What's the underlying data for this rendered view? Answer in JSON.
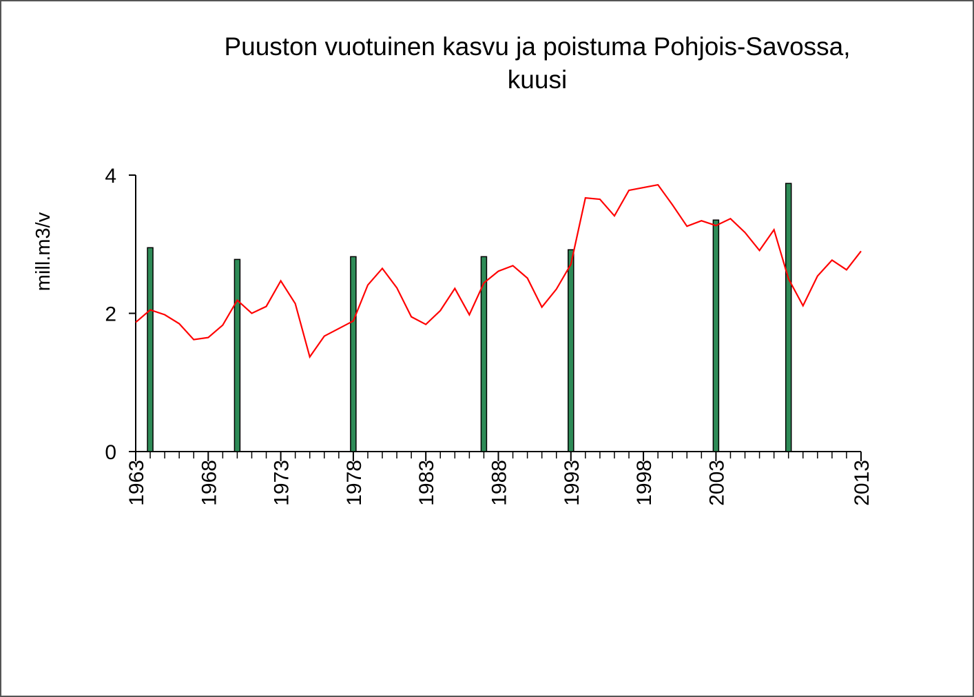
{
  "chart_data": {
    "type": "combo",
    "title": [
      "Puuston vuotuinen kasvu ja poistuma Pohjois-Savossa,",
      "kuusi"
    ],
    "y_label": "mill.m3/v",
    "x": [
      1963,
      1964,
      1965,
      1966,
      1967,
      1968,
      1969,
      1970,
      1971,
      1972,
      1973,
      1974,
      1975,
      1976,
      1977,
      1978,
      1979,
      1980,
      1981,
      1982,
      1983,
      1984,
      1985,
      1986,
      1987,
      1988,
      1989,
      1990,
      1991,
      1992,
      1993,
      1994,
      1995,
      1996,
      1997,
      1998,
      1999,
      2000,
      2001,
      2002,
      2003,
      2004,
      2005,
      2006,
      2007,
      2008,
      2009,
      2010,
      2011,
      2012,
      2013
    ],
    "series": [
      {
        "type": "bar",
        "color": "#2e8b57",
        "values": [
          null,
          2.95,
          null,
          null,
          null,
          null,
          null,
          2.78,
          null,
          null,
          null,
          null,
          null,
          null,
          null,
          2.82,
          null,
          null,
          null,
          null,
          null,
          null,
          null,
          null,
          2.82,
          null,
          null,
          null,
          null,
          null,
          2.92,
          null,
          null,
          null,
          null,
          null,
          null,
          null,
          null,
          null,
          3.35,
          null,
          null,
          null,
          null,
          3.88,
          null,
          null,
          null,
          null,
          null
        ]
      },
      {
        "type": "line",
        "color": "#ff0000",
        "values": [
          1.87,
          2.05,
          1.98,
          1.85,
          1.62,
          1.65,
          1.83,
          2.19,
          2.0,
          2.1,
          2.47,
          2.14,
          1.37,
          1.67,
          1.78,
          1.89,
          2.41,
          2.65,
          2.37,
          1.95,
          1.84,
          2.04,
          2.36,
          1.98,
          2.44,
          2.61,
          2.69,
          2.51,
          2.09,
          2.35,
          2.71,
          3.67,
          3.65,
          3.41,
          3.78,
          3.82,
          3.86,
          3.57,
          3.26,
          3.34,
          3.27,
          3.37,
          3.17,
          2.91,
          3.21,
          2.5,
          2.11,
          2.54,
          2.77,
          2.63,
          2.9
        ]
      }
    ],
    "xlim": [
      1963,
      2013
    ],
    "xticks": [
      1963,
      1968,
      1973,
      1978,
      1983,
      1988,
      1993,
      1998,
      2003,
      2013
    ],
    "ylim": [
      0,
      4
    ],
    "yticks": [
      0,
      2,
      4
    ],
    "grid": false
  }
}
